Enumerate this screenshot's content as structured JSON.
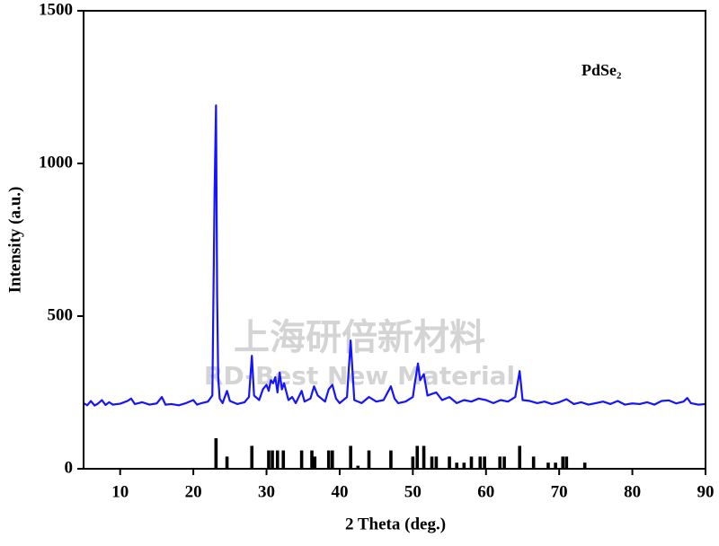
{
  "chart_data": {
    "type": "line",
    "xlabel": "2 Theta (deg.)",
    "ylabel": "Intensity (a.u.)",
    "annotation": "PdSe₂",
    "watermark": [
      "上海研倍新材料",
      "RD-Best New Material"
    ],
    "xlim": [
      5,
      90
    ],
    "ylim": [
      0,
      1500
    ],
    "xticks": [
      10,
      20,
      30,
      40,
      50,
      60,
      70,
      80,
      90
    ],
    "yticks": [
      0,
      500,
      1000,
      1500
    ],
    "series": [
      {
        "kind": "line",
        "color": "#1414ff",
        "x": [
          5,
          5.5,
          6,
          6.5,
          7,
          7.5,
          8,
          8.5,
          9,
          10,
          11,
          11.5,
          12,
          13,
          14,
          15,
          15.7,
          16.2,
          17,
          18,
          19,
          20,
          20.5,
          21,
          22,
          22.6,
          22.9,
          23.1,
          23.25,
          23.4,
          23.6,
          24,
          24.6,
          25,
          26,
          27,
          27.6,
          28,
          28.3,
          29,
          29.5,
          30,
          30.3,
          30.6,
          30.9,
          31.2,
          31.5,
          31.8,
          32.1,
          32.4,
          33,
          33.5,
          34,
          34.8,
          35.2,
          36,
          36.5,
          37,
          38,
          38.5,
          39,
          39.5,
          40,
          41,
          41.5,
          42,
          43,
          44,
          45,
          46,
          47,
          47.5,
          48,
          49,
          50,
          50.3,
          50.7,
          51,
          51.5,
          52,
          52.6,
          53.2,
          54,
          55,
          56,
          57,
          58,
          59,
          60,
          61,
          62,
          63,
          64,
          64.6,
          65,
          66,
          67,
          68,
          69,
          70,
          71,
          72,
          73,
          74,
          75,
          76,
          77,
          78,
          79,
          80,
          81,
          82,
          83,
          84,
          85,
          86,
          87,
          87.5,
          88,
          89,
          90
        ],
        "values": [
          215,
          208,
          222,
          207,
          214,
          225,
          209,
          218,
          210,
          213,
          222,
          230,
          212,
          218,
          210,
          214,
          235,
          210,
          212,
          208,
          215,
          225,
          210,
          214,
          220,
          240,
          900,
          1190,
          570,
          300,
          230,
          215,
          255,
          222,
          212,
          218,
          235,
          370,
          240,
          225,
          260,
          275,
          255,
          290,
          280,
          300,
          250,
          315,
          260,
          280,
          225,
          235,
          215,
          255,
          220,
          230,
          270,
          240,
          220,
          260,
          275,
          230,
          215,
          235,
          420,
          225,
          215,
          235,
          220,
          225,
          270,
          230,
          215,
          220,
          235,
          285,
          345,
          290,
          310,
          240,
          245,
          250,
          225,
          235,
          215,
          225,
          220,
          230,
          225,
          215,
          225,
          220,
          235,
          320,
          225,
          222,
          215,
          220,
          212,
          218,
          228,
          212,
          218,
          210,
          215,
          220,
          212,
          222,
          210,
          214,
          212,
          218,
          210,
          222,
          224,
          214,
          220,
          232,
          215,
          210,
          212
        ]
      },
      {
        "kind": "stick",
        "color": "#000000",
        "x": [
          23.1,
          24.6,
          28,
          30.3,
          30.8,
          31.5,
          32.3,
          34.8,
          36.2,
          36.6,
          38.5,
          39,
          41.5,
          42.5,
          44,
          47,
          50,
          50.6,
          51.5,
          52.6,
          53.2,
          55,
          56,
          57,
          58,
          59.2,
          59.8,
          61.9,
          62.5,
          64.6,
          66.5,
          68.5,
          69.5,
          70.5,
          71,
          73.5
        ],
        "values": [
          100,
          40,
          75,
          60,
          60,
          60,
          60,
          60,
          60,
          40,
          60,
          60,
          75,
          10,
          60,
          60,
          40,
          75,
          75,
          40,
          40,
          40,
          20,
          20,
          40,
          40,
          40,
          40,
          40,
          75,
          40,
          20,
          20,
          40,
          40,
          20
        ]
      }
    ]
  }
}
